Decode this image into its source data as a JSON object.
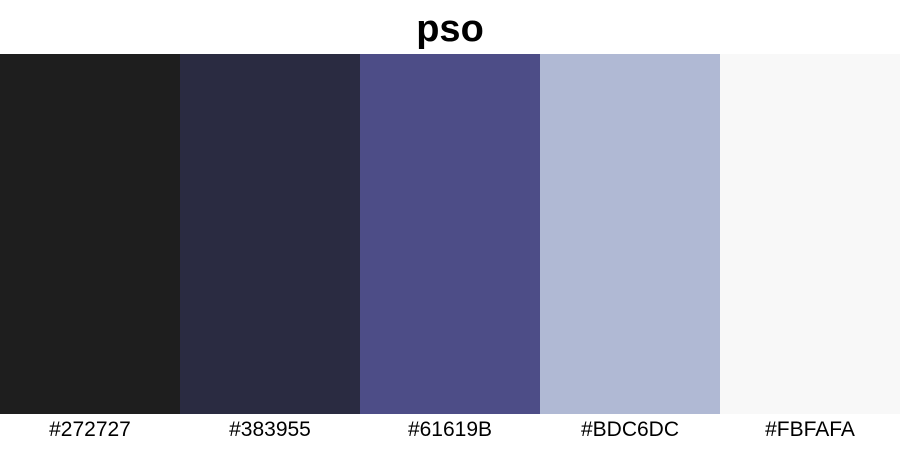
{
  "title": "pso",
  "swatches": [
    {
      "hex": "#272727",
      "fill": "#1e1e1e"
    },
    {
      "hex": "#383955",
      "fill": "#2a2b41"
    },
    {
      "hex": "#61619B",
      "fill": "#4d4d87"
    },
    {
      "hex": "#BDC6DC",
      "fill": "#b0b9d4"
    },
    {
      "hex": "#FBFAFA",
      "fill": "#f8f8f8"
    }
  ]
}
